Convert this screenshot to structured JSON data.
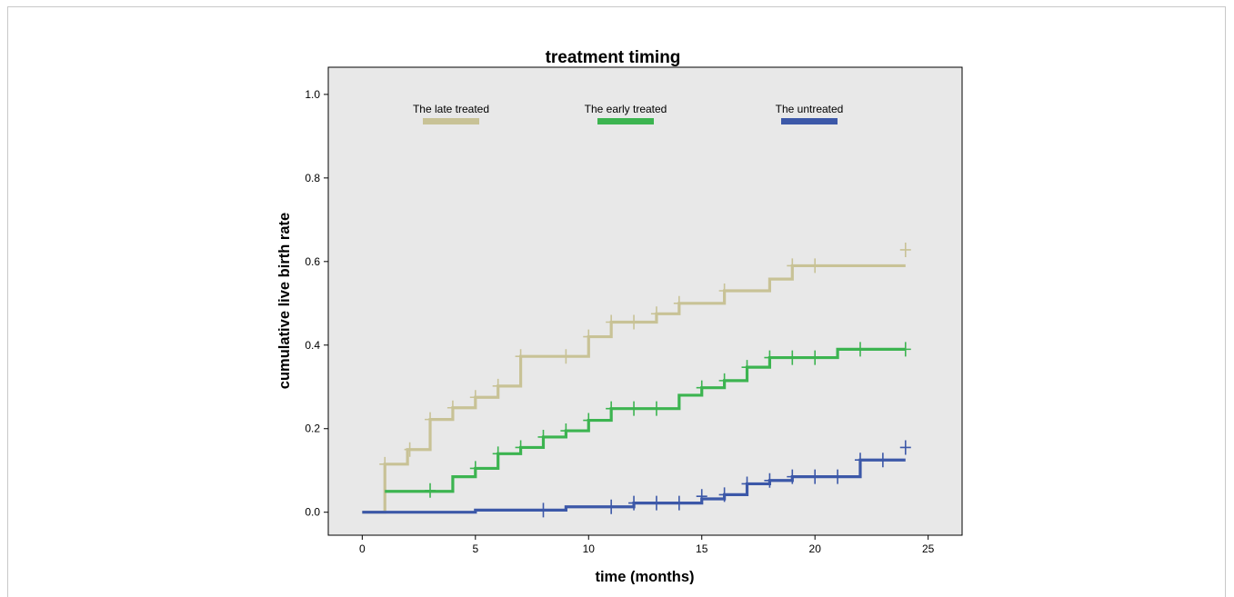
{
  "chart_data": {
    "type": "line",
    "subtype": "step (Kaplan-Meier cumulative incidence) with censor marks",
    "title": "treatment timing",
    "xlabel": "time (months)",
    "ylabel": "cumulative live birth rate",
    "xlim": [
      -1.5,
      26.5
    ],
    "ylim": [
      -0.055,
      1.065
    ],
    "x_ticks": [
      0,
      5,
      10,
      15,
      20,
      25
    ],
    "y_ticks": [
      0.0,
      0.2,
      0.4,
      0.6,
      0.8,
      1.0
    ],
    "x_tick_labels": [
      "0",
      "5",
      "10",
      "15",
      "20",
      "25"
    ],
    "y_tick_labels": [
      "0.0",
      "0.2",
      "0.4",
      "0.6",
      "0.8",
      "1.0"
    ],
    "grid": false,
    "legend_placement": "top, inside plot area, horizontal",
    "plot_background": "#e8e8e8",
    "series": [
      {
        "name": "The late treated",
        "color": "#c8c296",
        "steps": [
          [
            0,
            0.0
          ],
          [
            1,
            0.115
          ],
          [
            2,
            0.15
          ],
          [
            3,
            0.222
          ],
          [
            4,
            0.25
          ],
          [
            5,
            0.275
          ],
          [
            6,
            0.302
          ],
          [
            7,
            0.373
          ],
          [
            10,
            0.42
          ],
          [
            11,
            0.455
          ],
          [
            13,
            0.475
          ],
          [
            14,
            0.5
          ],
          [
            16,
            0.53
          ],
          [
            18,
            0.558
          ],
          [
            19,
            0.59
          ]
        ],
        "end_x": 24,
        "censored": [
          [
            1,
            0.115
          ],
          [
            2.1,
            0.15
          ],
          [
            3,
            0.222
          ],
          [
            4,
            0.25
          ],
          [
            5,
            0.275
          ],
          [
            6,
            0.302
          ],
          [
            7,
            0.373
          ],
          [
            9,
            0.373
          ],
          [
            10,
            0.42
          ],
          [
            11,
            0.455
          ],
          [
            12,
            0.455
          ],
          [
            13,
            0.475
          ],
          [
            14,
            0.5
          ],
          [
            16,
            0.53
          ],
          [
            19,
            0.59
          ],
          [
            20,
            0.59
          ],
          [
            24,
            0.628
          ]
        ]
      },
      {
        "name": "The early treated",
        "color": "#3cb450",
        "steps": [
          [
            1,
            0.05
          ],
          [
            4,
            0.085
          ],
          [
            5,
            0.105
          ],
          [
            6,
            0.14
          ],
          [
            7,
            0.155
          ],
          [
            8,
            0.18
          ],
          [
            9,
            0.195
          ],
          [
            10,
            0.22
          ],
          [
            11,
            0.248
          ],
          [
            14,
            0.28
          ],
          [
            15,
            0.298
          ],
          [
            16,
            0.315
          ],
          [
            17,
            0.347
          ],
          [
            18,
            0.37
          ],
          [
            21,
            0.39
          ]
        ],
        "end_x": 24,
        "censored": [
          [
            3,
            0.052
          ],
          [
            5,
            0.105
          ],
          [
            6,
            0.14
          ],
          [
            7,
            0.155
          ],
          [
            8,
            0.18
          ],
          [
            9,
            0.195
          ],
          [
            10,
            0.22
          ],
          [
            11,
            0.248
          ],
          [
            12,
            0.248
          ],
          [
            13,
            0.248
          ],
          [
            15,
            0.298
          ],
          [
            16,
            0.315
          ],
          [
            17,
            0.347
          ],
          [
            18,
            0.37
          ],
          [
            19,
            0.37
          ],
          [
            20,
            0.37
          ],
          [
            22,
            0.39
          ],
          [
            24,
            0.39
          ]
        ]
      },
      {
        "name": "The untreated",
        "color": "#3c58a8",
        "steps": [
          [
            0,
            0.0
          ],
          [
            5,
            0.005
          ],
          [
            9,
            0.013
          ],
          [
            12,
            0.022
          ],
          [
            15,
            0.032
          ],
          [
            16,
            0.042
          ],
          [
            17,
            0.068
          ],
          [
            18,
            0.076
          ],
          [
            19,
            0.085
          ],
          [
            22,
            0.125
          ]
        ],
        "end_x": 24,
        "censored": [
          [
            8,
            0.005
          ],
          [
            11,
            0.013
          ],
          [
            12,
            0.022
          ],
          [
            13,
            0.022
          ],
          [
            14,
            0.022
          ],
          [
            15,
            0.038
          ],
          [
            16,
            0.042
          ],
          [
            17,
            0.068
          ],
          [
            18,
            0.076
          ],
          [
            19,
            0.085
          ],
          [
            20,
            0.085
          ],
          [
            21,
            0.085
          ],
          [
            22,
            0.125
          ],
          [
            23,
            0.125
          ],
          [
            24,
            0.155
          ]
        ]
      }
    ]
  }
}
